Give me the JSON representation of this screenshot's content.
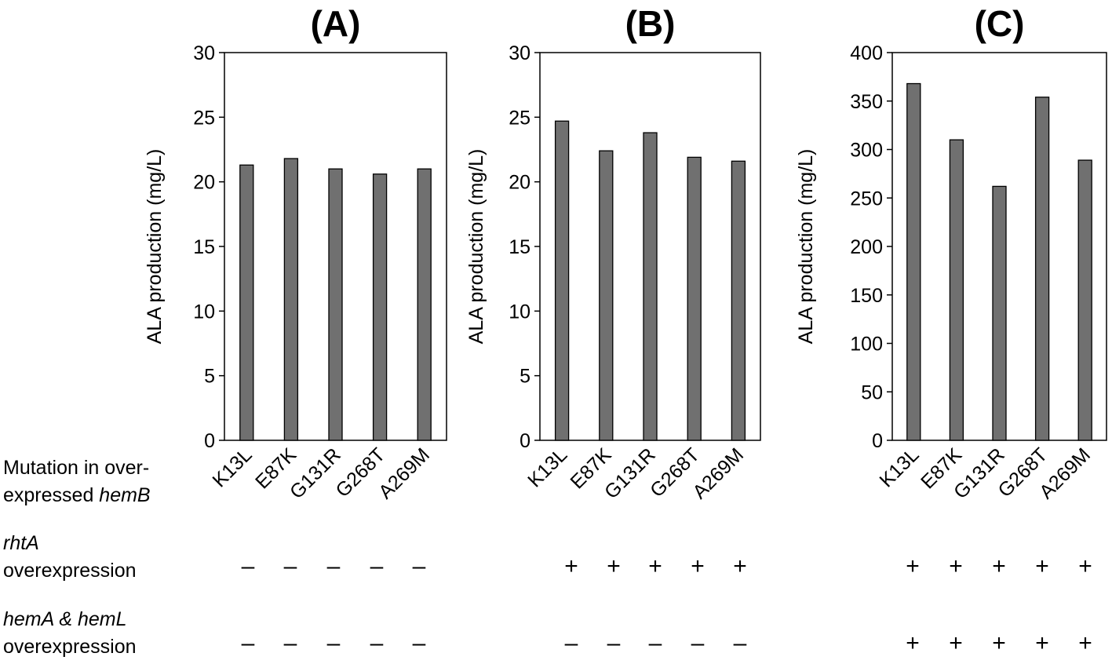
{
  "row_labels": {
    "mutation": {
      "line1": "Mutation in over-",
      "line2_text": "expressed ",
      "line2_italic": "hemB"
    },
    "rhtA": {
      "italic": "rhtA",
      "line2": "overexpression"
    },
    "hemAL": {
      "italic": "hemA & hemL",
      "line2": "overexpression"
    }
  },
  "colors": {
    "bar": "#707070",
    "bar_edge": "#000000",
    "axis": "#000000"
  },
  "chart_data": [
    {
      "type": "bar",
      "title": "(A)",
      "ylabel": "ALA production (mg/L)",
      "categories": [
        "K13L",
        "E87K",
        "G131R",
        "G268T",
        "A269M"
      ],
      "values": [
        21.3,
        21.8,
        21.0,
        20.6,
        21.0
      ],
      "ylim": [
        0,
        30
      ],
      "yticks": [
        0,
        5,
        10,
        15,
        20,
        25,
        30
      ],
      "grid": false,
      "rhtA": [
        "–",
        "–",
        "–",
        "–",
        "–"
      ],
      "hemAL": [
        "–",
        "–",
        "–",
        "–",
        "–"
      ]
    },
    {
      "type": "bar",
      "title": "(B)",
      "ylabel": "ALA production (mg/L)",
      "categories": [
        "K13L",
        "E87K",
        "G131R",
        "G268T",
        "A269M"
      ],
      "values": [
        24.7,
        22.4,
        23.8,
        21.9,
        21.6
      ],
      "ylim": [
        0,
        30
      ],
      "yticks": [
        0,
        5,
        10,
        15,
        20,
        25,
        30
      ],
      "grid": false,
      "rhtA": [
        "+",
        "+",
        "+",
        "+",
        "+"
      ],
      "hemAL": [
        "–",
        "–",
        "–",
        "–",
        "–"
      ]
    },
    {
      "type": "bar",
      "title": "(C)",
      "ylabel": "ALA production (mg/L)",
      "categories": [
        "K13L",
        "E87K",
        "G131R",
        "G268T",
        "A269M"
      ],
      "values": [
        368,
        310,
        262,
        354,
        289
      ],
      "ylim": [
        0,
        400
      ],
      "yticks": [
        0,
        50,
        100,
        150,
        200,
        250,
        300,
        350,
        400
      ],
      "grid": false,
      "rhtA": [
        "+",
        "+",
        "+",
        "+",
        "+"
      ],
      "hemAL": [
        "+",
        "+",
        "+",
        "+",
        "+"
      ]
    }
  ]
}
